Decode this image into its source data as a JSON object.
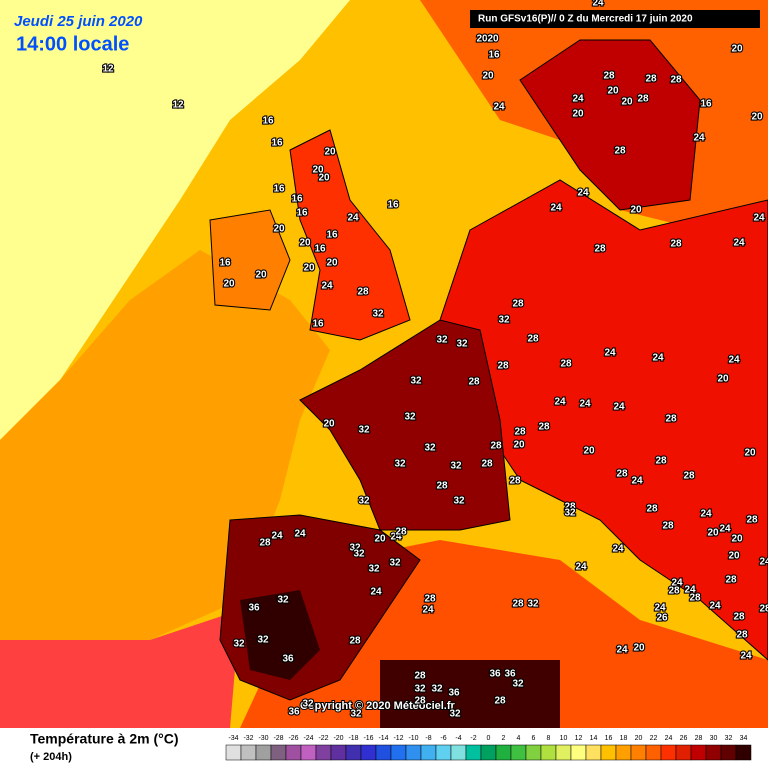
{
  "header": {
    "date": "Jeudi 25 juin 2020",
    "time": "14:00 locale",
    "run": "Run GFSv16(P)// 0 Z du Mercredi 17 juin 2020"
  },
  "copyright": "Copyright © 2020 Météociel.fr",
  "legend": {
    "title": "Température à 2m (°C)",
    "lead": "(+ 204h)",
    "ticks": [
      -34,
      -32,
      -30,
      -28,
      -26,
      -24,
      -22,
      -20,
      -18,
      -16,
      -14,
      -12,
      -10,
      -8,
      -6,
      -4,
      -2,
      0,
      2,
      4,
      6,
      8,
      10,
      12,
      14,
      16,
      18,
      20,
      22,
      24,
      26,
      28,
      30,
      32,
      34
    ],
    "colors": [
      "#e0e0e0",
      "#c0c0c0",
      "#a0a0a0",
      "#806080",
      "#a050a0",
      "#c060c0",
      "#8040a0",
      "#6030a0",
      "#4030b0",
      "#3030d0",
      "#2050e0",
      "#2070f0",
      "#3090f0",
      "#40b0f0",
      "#60d0f0",
      "#80e0e0",
      "#00c0a0",
      "#00a060",
      "#20b040",
      "#40c040",
      "#80d040",
      "#b0e040",
      "#e0f060",
      "#ffff80",
      "#ffe060",
      "#ffc000",
      "#ffa000",
      "#ff8000",
      "#ff6000",
      "#ff3000",
      "#e02000",
      "#c00000",
      "#900000",
      "#600000",
      "#300000"
    ]
  },
  "map_labels": [
    12,
    12,
    16,
    16,
    20,
    20,
    20,
    16,
    16,
    16,
    20,
    16,
    20,
    16,
    16,
    20,
    20,
    20,
    20,
    24,
    24,
    16,
    28,
    32,
    16,
    24,
    20,
    20,
    16,
    20,
    24,
    28,
    28,
    28,
    20,
    20,
    24,
    20,
    28,
    20,
    16,
    24,
    20,
    28,
    24,
    24,
    20,
    28,
    28,
    24,
    24,
    28,
    32,
    28,
    32,
    32,
    28,
    32,
    28,
    28,
    24,
    24,
    24,
    20,
    24,
    24,
    24,
    28,
    32,
    20,
    32,
    28,
    28,
    28,
    20,
    28,
    20,
    32,
    32,
    32,
    28,
    32,
    32,
    28,
    28,
    24,
    28,
    28,
    20,
    28,
    32,
    28,
    24,
    24,
    28,
    28,
    20,
    28,
    24,
    24,
    20,
    24,
    28,
    32,
    32,
    32,
    32,
    24,
    24,
    20,
    20,
    24,
    28,
    24,
    28,
    24,
    24,
    28,
    24,
    32,
    36,
    28,
    24,
    28,
    24,
    32,
    26,
    28,
    28,
    32,
    32,
    28,
    28,
    24,
    20,
    36,
    24,
    28,
    36,
    36,
    32,
    32,
    32,
    36,
    28,
    28,
    36,
    32,
    32,
    32
  ]
}
